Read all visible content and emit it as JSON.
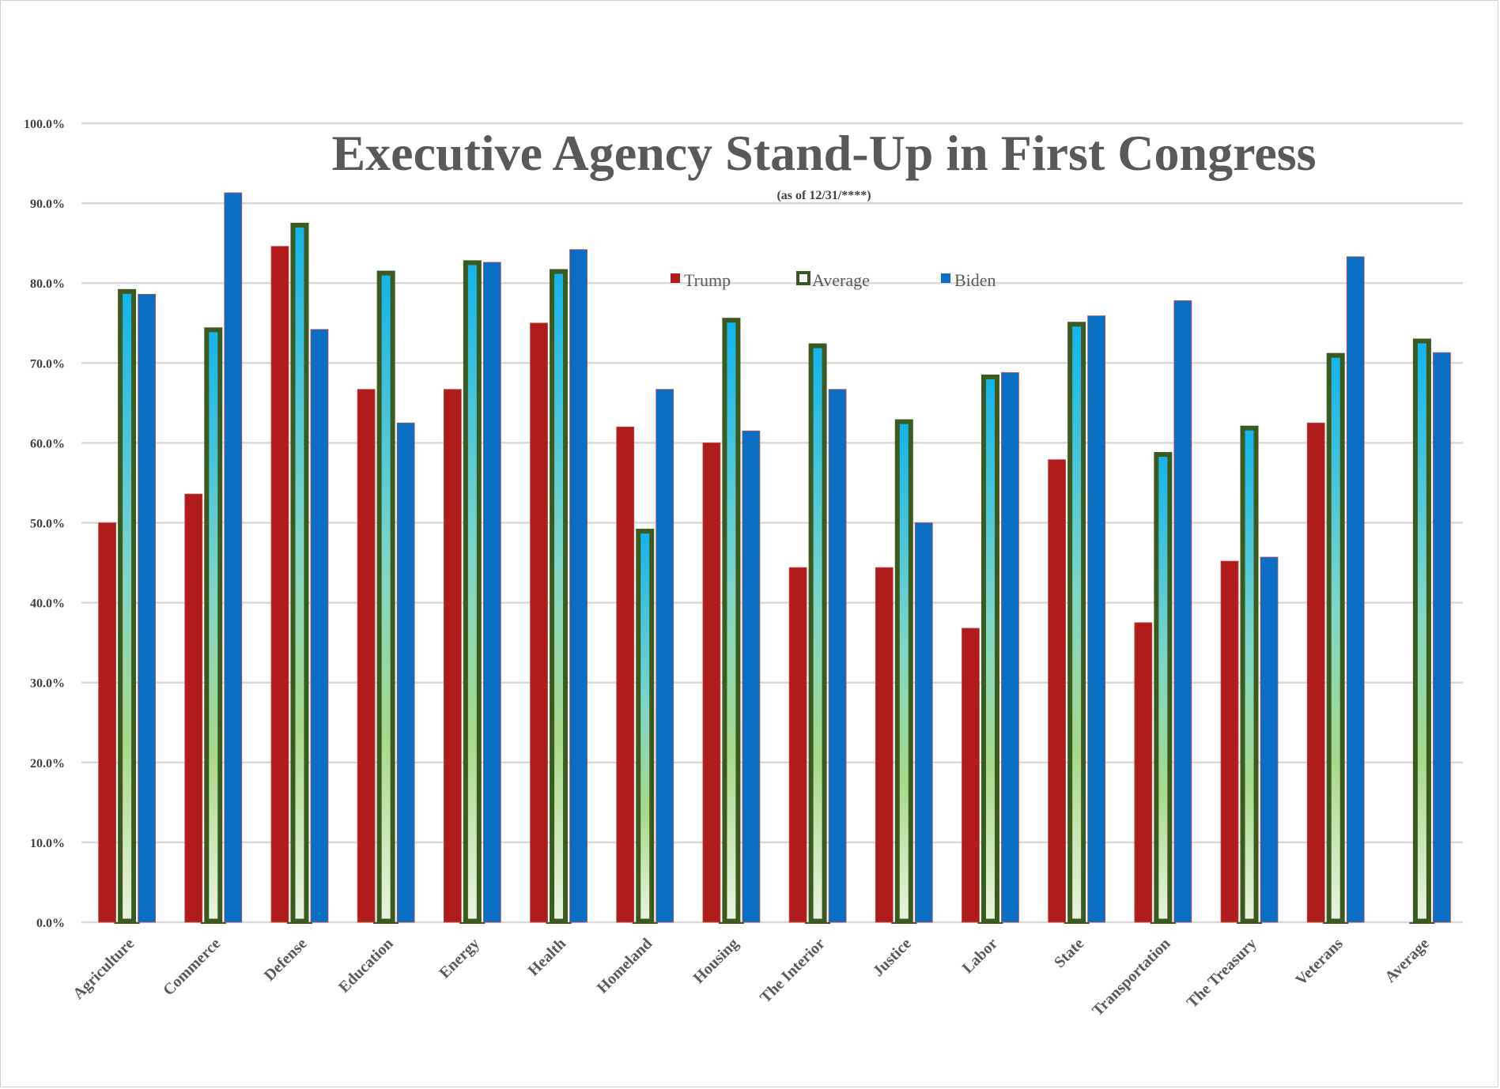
{
  "chart_data": {
    "type": "bar",
    "title": "Executive Agency Stand-Up in First Congress",
    "subtitle": "(as of 12/31/****)",
    "xlabel": "",
    "ylabel": "",
    "ylim": [
      0,
      100
    ],
    "yticks": [
      "0.0%",
      "10.0%",
      "20.0%",
      "30.0%",
      "40.0%",
      "50.0%",
      "60.0%",
      "70.0%",
      "80.0%",
      "90.0%",
      "100.0%"
    ],
    "grid": true,
    "legend_position": "top-center",
    "categories": [
      "Agriculture",
      "Commerce",
      "Defense",
      "Education",
      "Energy",
      "Health",
      "Homeland",
      "Housing",
      "The Interior",
      "Justice",
      "Labor",
      "State",
      "Transportation",
      "The Treasury",
      "Veterans",
      "Average"
    ],
    "series": [
      {
        "name": "Trump",
        "color": "#b01c1c",
        "values": [
          50.0,
          53.6,
          84.6,
          66.7,
          66.7,
          75.0,
          62.0,
          60.0,
          44.4,
          44.4,
          36.8,
          57.9,
          37.5,
          45.2,
          62.5,
          0
        ]
      },
      {
        "name": "Average",
        "color": "#3a5a1f",
        "values": [
          79.2,
          74.4,
          87.5,
          81.5,
          82.8,
          81.7,
          49.2,
          75.6,
          72.4,
          62.9,
          68.5,
          75.1,
          58.8,
          62.1,
          71.2,
          73.0
        ]
      },
      {
        "name": "Biden",
        "color": "#0a6ec4",
        "values": [
          78.6,
          91.3,
          74.2,
          62.5,
          82.6,
          84.2,
          66.7,
          61.5,
          66.7,
          50.0,
          68.8,
          75.9,
          77.8,
          45.7,
          83.3,
          71.3
        ]
      }
    ]
  }
}
